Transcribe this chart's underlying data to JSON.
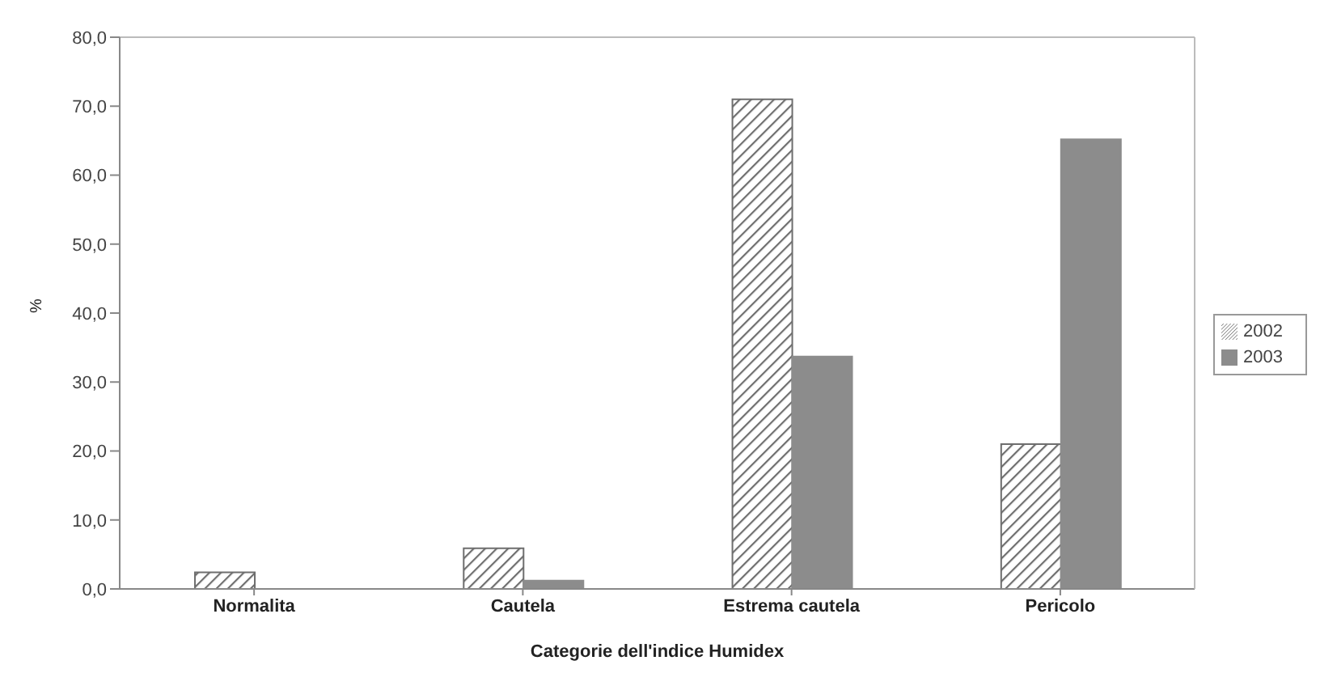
{
  "chart_data": {
    "type": "bar",
    "xlabel": "Categorie dell'indice Humidex",
    "ylabel": "%",
    "categories": [
      "Normalita",
      "Cautela",
      "Estrema cautela",
      "Pericolo"
    ],
    "series": [
      {
        "name": "2002",
        "color": "#6e6e6e",
        "values": [
          2.4,
          5.9,
          71.0,
          21.0
        ]
      },
      {
        "name": "2003",
        "color": "#8c8c8c",
        "values": [
          0,
          1.2,
          33.7,
          65.2
        ]
      }
    ],
    "ylim": [
      0,
      80
    ],
    "yticks": [
      {
        "value": 0,
        "label": "0,0"
      },
      {
        "value": 10,
        "label": "10,0"
      },
      {
        "value": 20,
        "label": "20,0"
      },
      {
        "value": 30,
        "label": "30,0"
      },
      {
        "value": 40,
        "label": "40,0"
      },
      {
        "value": 50,
        "label": "50,0"
      },
      {
        "value": 60,
        "label": "60,0"
      },
      {
        "value": 70,
        "label": "70,0"
      },
      {
        "value": 80,
        "label": "80,0"
      }
    ],
    "grid": false,
    "legend": "right"
  }
}
